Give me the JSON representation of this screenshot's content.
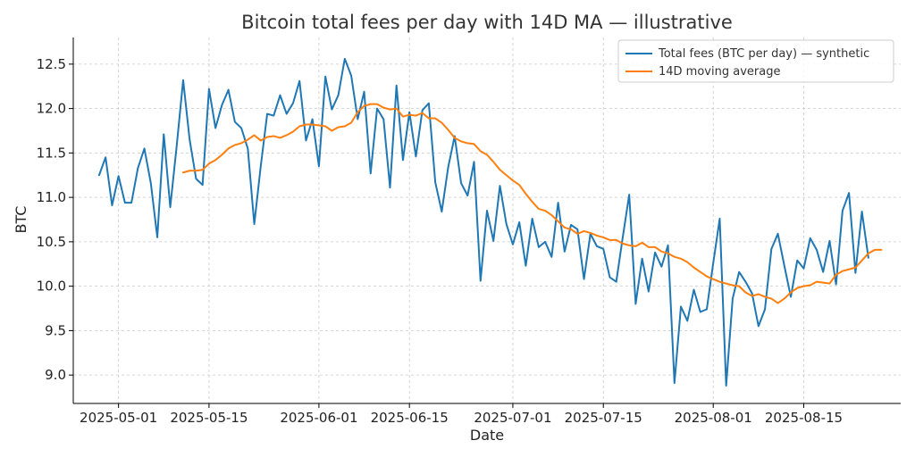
{
  "chart_data": {
    "type": "line",
    "title": "Bitcoin total fees per day with 14D MA — illustrative",
    "xlabel": "Date",
    "ylabel": "BTC",
    "ylim": [
      8.68,
      12.8
    ],
    "y_ticks": [
      "9.0",
      "9.5",
      "10.0",
      "10.5",
      "11.0",
      "11.5",
      "12.0",
      "12.5"
    ],
    "xlim": [
      "2025-04-24",
      "2025-08-30"
    ],
    "x_ticks": [
      "2025-05-01",
      "2025-05-15",
      "2025-06-01",
      "2025-06-15",
      "2025-07-01",
      "2025-07-15",
      "2025-08-01",
      "2025-08-15"
    ],
    "grid": true,
    "legend_position": "top-right",
    "start_date": "2025-04-28",
    "series": [
      {
        "name": "Total fees (BTC per day) — synthetic",
        "color": "#1f77b4",
        "values": [
          11.25,
          11.45,
          10.91,
          11.24,
          10.94,
          10.94,
          11.33,
          11.55,
          11.16,
          10.55,
          11.71,
          10.89,
          11.58,
          12.32,
          11.65,
          11.21,
          11.14,
          12.22,
          11.78,
          12.04,
          12.21,
          11.85,
          11.78,
          11.55,
          10.7,
          11.35,
          11.94,
          11.92,
          12.15,
          11.94,
          12.06,
          12.31,
          11.64,
          11.88,
          11.35,
          12.36,
          11.99,
          12.15,
          12.56,
          12.37,
          11.88,
          12.19,
          11.27,
          12.0,
          11.88,
          11.11,
          12.26,
          11.42,
          11.96,
          11.46,
          11.98,
          12.06,
          11.17,
          10.84,
          11.34,
          11.69,
          11.16,
          11.02,
          11.4,
          10.06,
          10.85,
          10.51,
          11.13,
          10.7,
          10.47,
          10.72,
          10.23,
          10.76,
          10.44,
          10.5,
          10.33,
          10.94,
          10.39,
          10.69,
          10.64,
          10.08,
          10.59,
          10.45,
          10.42,
          10.1,
          10.05,
          10.55,
          11.03,
          9.8,
          10.31,
          9.94,
          10.38,
          10.22,
          10.46,
          8.91,
          9.77,
          9.61,
          9.96,
          9.71,
          9.74,
          10.26,
          10.76,
          8.88,
          9.86,
          10.16,
          10.05,
          9.92,
          9.55,
          9.74,
          10.42,
          10.59,
          10.23,
          9.88,
          10.29,
          10.2,
          10.54,
          10.41,
          10.16,
          10.51,
          10.02,
          10.85,
          11.05,
          10.15,
          10.84,
          10.32
        ]
      },
      {
        "name": "14D moving average",
        "color": "#ff7f0e",
        "values": [
          null,
          null,
          null,
          null,
          null,
          null,
          null,
          null,
          null,
          null,
          null,
          null,
          null,
          11.28,
          11.3,
          11.3,
          11.31,
          11.38,
          11.42,
          11.48,
          11.55,
          11.59,
          11.61,
          11.65,
          11.7,
          11.64,
          11.68,
          11.69,
          11.67,
          11.7,
          11.74,
          11.8,
          11.82,
          11.82,
          11.81,
          11.8,
          11.75,
          11.79,
          11.8,
          11.84,
          11.96,
          12.03,
          12.05,
          12.05,
          12.01,
          11.99,
          12.0,
          11.91,
          11.93,
          11.92,
          11.95,
          11.89,
          11.89,
          11.84,
          11.76,
          11.67,
          11.63,
          11.61,
          11.6,
          11.52,
          11.48,
          11.4,
          11.31,
          11.25,
          11.19,
          11.14,
          11.04,
          10.95,
          10.87,
          10.85,
          10.8,
          10.73,
          10.66,
          10.64,
          10.59,
          10.62,
          10.6,
          10.57,
          10.55,
          10.52,
          10.52,
          10.48,
          10.46,
          10.45,
          10.49,
          10.44,
          10.44,
          10.39,
          10.37,
          10.33,
          10.31,
          10.27,
          10.21,
          10.16,
          10.11,
          10.08,
          10.05,
          10.03,
          10.01,
          10.0,
          9.93,
          9.89,
          9.91,
          9.88,
          9.86,
          9.81,
          9.86,
          9.93,
          9.98,
          10.0,
          10.01,
          10.05,
          10.04,
          10.03,
          10.13,
          10.17,
          10.19,
          10.21,
          10.29,
          10.37,
          10.41,
          10.41
        ]
      }
    ]
  }
}
